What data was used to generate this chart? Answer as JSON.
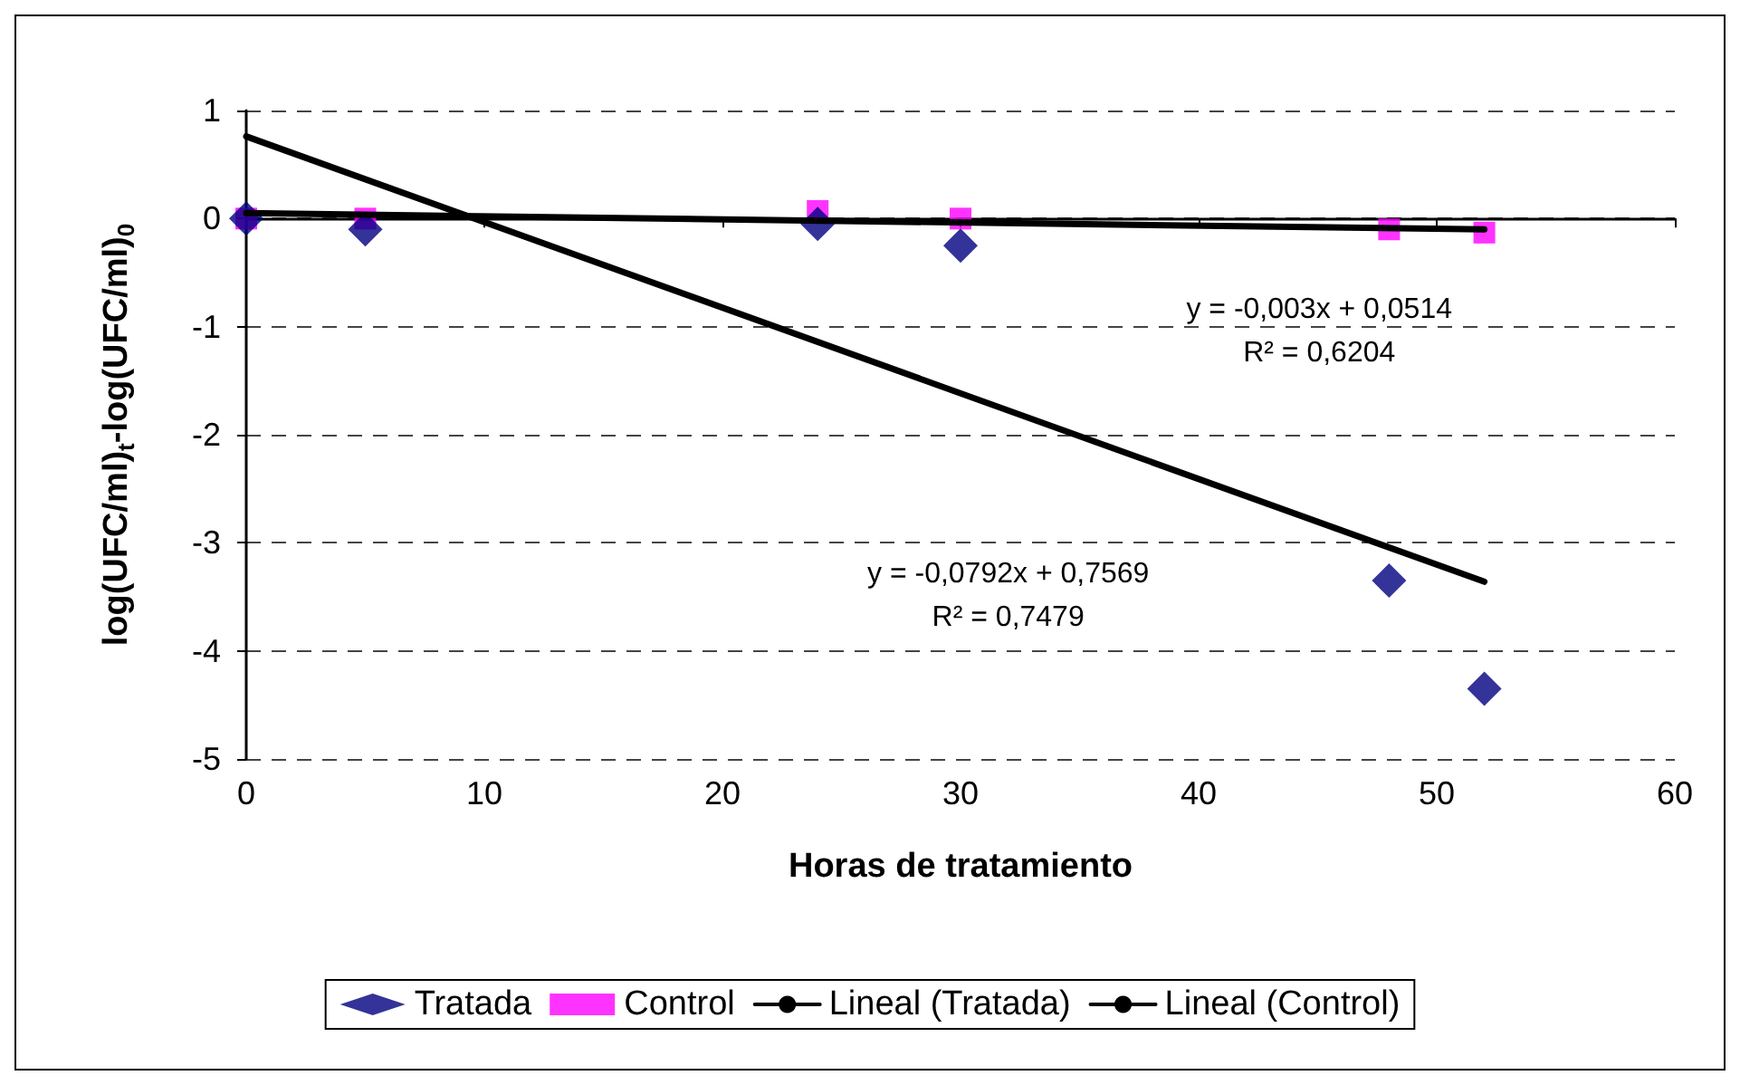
{
  "chart_data": {
    "type": "scatter",
    "xlabel": "Horas de tratamiento",
    "ylabel": "log(UFC/ml)$_{t}$-log(UFC/ml)$_{0}$",
    "xlim": [
      0,
      60
    ],
    "xticks": [
      0,
      10,
      20,
      30,
      40,
      50,
      60
    ],
    "ylim": [
      -5,
      1
    ],
    "yticks": [
      -5,
      -4,
      -3,
      -2,
      -1,
      0,
      1
    ],
    "grid": "y",
    "legend": "bottom",
    "series": [
      {
        "name": "Tratada",
        "color": "#000080",
        "marker": "diamond",
        "x": [
          0,
          5,
          24,
          30,
          48,
          52
        ],
        "values": [
          0,
          -0.1,
          -0.05,
          -0.25,
          -3.35,
          -4.35
        ]
      },
      {
        "name": "Control",
        "color": "#ff00ff",
        "marker": "square",
        "x": [
          0,
          5,
          24,
          30,
          48,
          52
        ],
        "values": [
          0,
          0,
          0.07,
          0,
          -0.1,
          -0.13
        ]
      },
      {
        "name": "Lineal (Tratada)",
        "type": "line",
        "color": "#000000",
        "marker": "none",
        "line_style": "solid",
        "x": [
          0,
          52
        ],
        "values": [
          0.76,
          -3.36
        ]
      },
      {
        "name": "Lineal (Control)",
        "type": "line",
        "color": "#000000",
        "marker": "none",
        "line_style": "solid",
        "x": [
          0,
          52
        ],
        "values": [
          0.05,
          -0.1
        ]
      }
    ],
    "annotations": [
      "y = -0,003x + 0,0514\nR² = 0,6204",
      "y = -0,0792x + 0,7569\nR² = 0,7479"
    ]
  }
}
